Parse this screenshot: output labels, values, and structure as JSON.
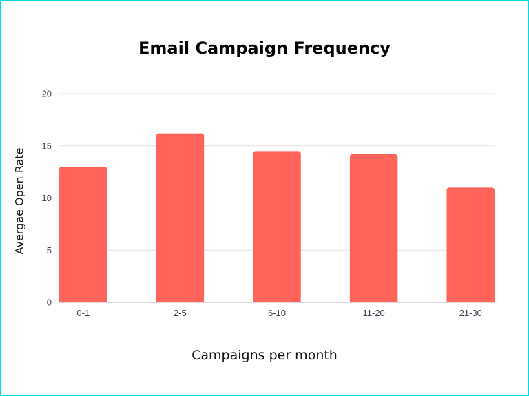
{
  "chart_data": {
    "type": "bar",
    "title": "Email Campaign Frequency",
    "xlabel": "Campaigns per month",
    "ylabel": "Avergae Open Rate",
    "categories": [
      "0-1",
      "2-5",
      "6-10",
      "11-20",
      "21-30"
    ],
    "values": [
      13,
      16.2,
      14.5,
      14.2,
      11
    ],
    "ylim": [
      0,
      20
    ],
    "yticks": [
      0,
      5,
      10,
      15,
      20
    ],
    "grid": true,
    "legend": null,
    "colors": {
      "bar": "#ff645a",
      "grid": "#e3e3e3",
      "axis": "#c6bfc9",
      "border": "#00d9e3"
    }
  }
}
